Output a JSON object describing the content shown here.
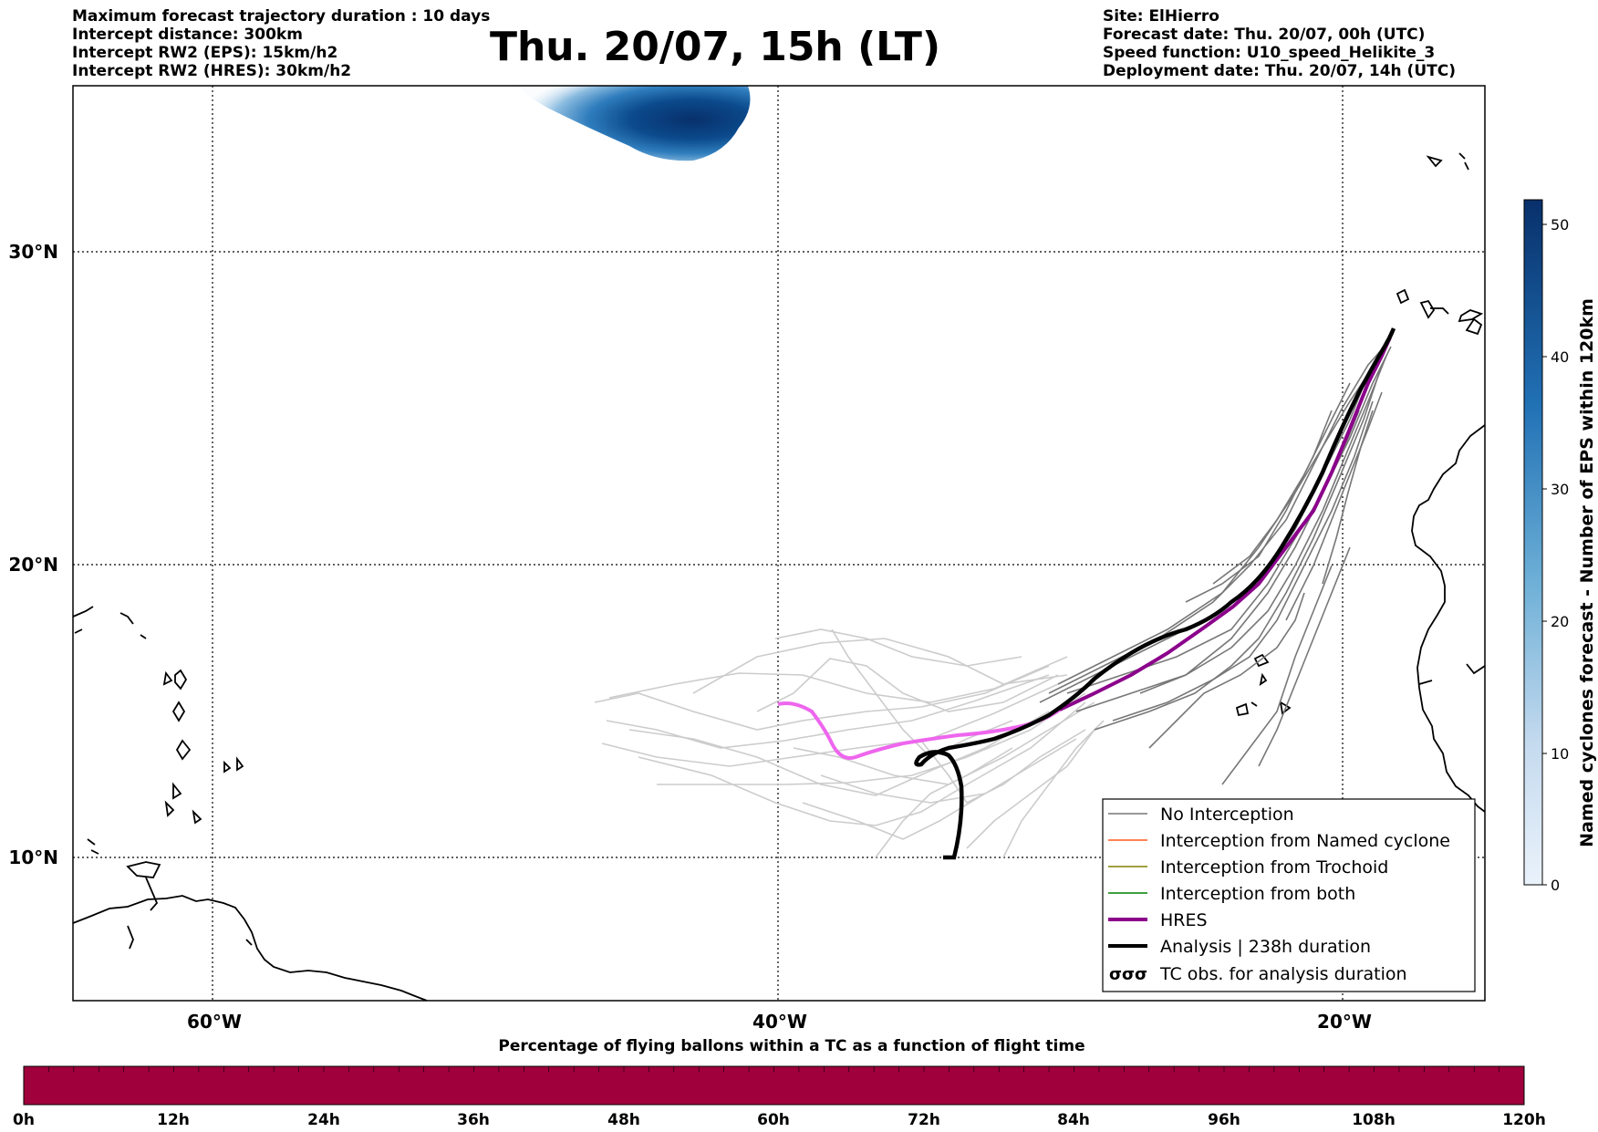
{
  "header": {
    "left": [
      "Maximum forecast trajectory duration : 10 days",
      "Intercept distance: 300km",
      "Intercept RW2 (EPS):  15km/h2",
      "Intercept RW2 (HRES): 30km/h2"
    ],
    "title": "Thu. 20/07, 15h (LT)",
    "right": [
      "Site: ElHierro",
      "Forecast date: Thu. 20/07, 00h (UTC)",
      "Speed function: U10_speed_Helikite_3",
      "Deployment date: Thu. 20/07, 14h (UTC)"
    ]
  },
  "map": {
    "lon_labels": [
      "60°W",
      "40°W",
      "20°W"
    ],
    "lat_labels": [
      "30°N",
      "20°N",
      "10°N"
    ],
    "colors": {
      "ensemble": "#777777",
      "ensemble_light": "#cccccc",
      "hres": "#8b008b",
      "hres_light": "#ee66ee",
      "analysis": "#000000",
      "cyclone_dark": "#08306b"
    }
  },
  "legend": {
    "entries": [
      {
        "label": "No Interception",
        "color": "#777777"
      },
      {
        "label": "Interception from Named cyclone",
        "color": "#ff5a1f"
      },
      {
        "label": "Interception from Trochoid",
        "color": "#808000"
      },
      {
        "label": "Interception from both",
        "color": "#008000"
      },
      {
        "label": "HRES",
        "color": "#8b008b"
      },
      {
        "label": "Analysis | 238h duration",
        "color": "#000000"
      },
      {
        "label": "TC obs. for analysis duration",
        "color": "#000000"
      }
    ],
    "tc_symbol": "σσσ"
  },
  "colorbar": {
    "label": "Named cyclones forecast - Number of EPS within 120km",
    "ticks": [
      "50",
      "40",
      "30",
      "20",
      "10",
      "0"
    ]
  },
  "flight_bar": {
    "title": "Percentage of flying ballons within a TC as a function of flight time",
    "color": "#a0003c",
    "ticks": [
      "0h",
      "12h",
      "24h",
      "36h",
      "48h",
      "60h",
      "72h",
      "84h",
      "96h",
      "108h",
      "120h"
    ]
  }
}
